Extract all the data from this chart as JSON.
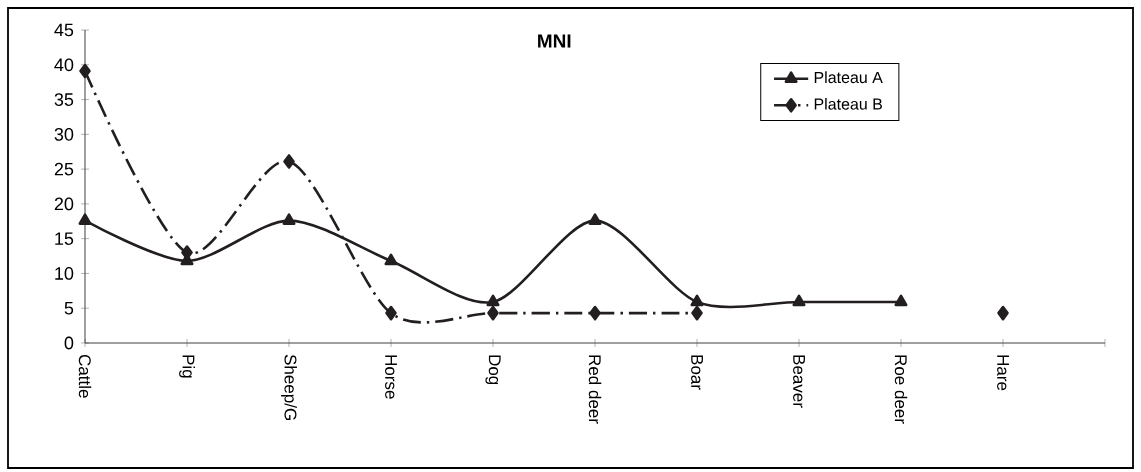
{
  "chart_data": {
    "type": "line",
    "title": "MNI",
    "categories": [
      "Cattle",
      "Pig",
      "Sheep/G",
      "Horse",
      "Dog",
      "Red deer",
      "Boar",
      "Beaver",
      "Roe deer",
      "Hare"
    ],
    "series": [
      {
        "name": "Plateau A",
        "color": "#231f20",
        "marker": "triangle",
        "line_style": "solid",
        "values": [
          17.6,
          11.8,
          17.6,
          11.8,
          5.9,
          17.6,
          5.9,
          5.9,
          5.9,
          null
        ]
      },
      {
        "name": "Plateau B",
        "color": "#231f20",
        "marker": "diamond",
        "line_style": "dashdot",
        "values": [
          39.1,
          13.0,
          26.1,
          4.3,
          4.3,
          4.3,
          4.3,
          null,
          null,
          4.3
        ]
      }
    ],
    "ylim": [
      0,
      45
    ],
    "yticks": [
      0,
      5,
      10,
      15,
      20,
      25,
      30,
      35,
      40,
      45
    ],
    "grid": false,
    "legend": "top right"
  }
}
